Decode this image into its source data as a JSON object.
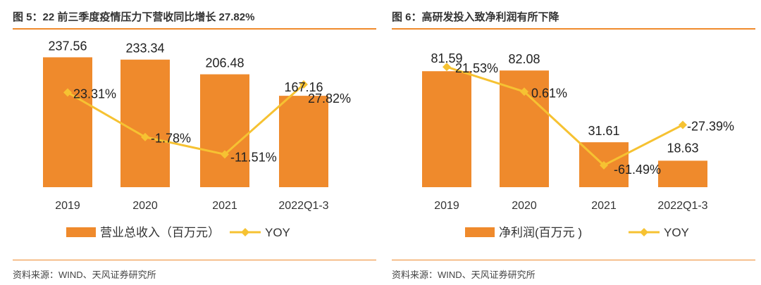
{
  "sources": {
    "left": "资料来源：WIND、天风证券研究所",
    "right": "资料来源：WIND、天风证券研究所"
  },
  "colors": {
    "bar": "#ef8a2c",
    "line": "#f6c232",
    "rule": "#ef8a2c"
  },
  "chart_data": [
    {
      "type": "bar",
      "title": "图 5：22 前三季度疫情压力下营收同比增长 27.82%",
      "categories": [
        "2019",
        "2020",
        "2021",
        "2022Q1-3"
      ],
      "series": [
        {
          "name": "营业总收入（百万元）",
          "type": "bar",
          "values": [
            237.56,
            233.34,
            206.48,
            167.16
          ],
          "labels": [
            "237.56",
            "233.34",
            "206.48",
            "167.16"
          ]
        },
        {
          "name": "YOY",
          "type": "line",
          "unit": "%",
          "values": [
            23.31,
            -1.78,
            -11.51,
            27.82
          ],
          "labels": [
            "23.31%",
            "-1.78%",
            "-11.51%",
            "27.82%"
          ]
        }
      ],
      "ylim_bar": [
        0,
        260
      ],
      "ylim_line": [
        -30,
        50
      ],
      "legend": "bottom"
    },
    {
      "type": "bar",
      "title": "图 6：高研发投入致净利润有所下降",
      "categories": [
        "2019",
        "2020",
        "2021",
        "2022Q1-3"
      ],
      "series": [
        {
          "name": "净利润(百万元 )",
          "type": "bar",
          "values": [
            81.59,
            82.08,
            31.61,
            18.63
          ],
          "labels": [
            "81.59",
            "82.08",
            "31.61",
            "18.63"
          ]
        },
        {
          "name": "YOY",
          "type": "line",
          "unit": "%",
          "values": [
            21.53,
            0.61,
            -61.49,
            -27.39
          ],
          "labels": [
            "21.53%",
            "0.61%",
            "-61.49%",
            "-27.39%"
          ]
        }
      ],
      "ylim_bar": [
        0,
        100
      ],
      "ylim_line": [
        -80,
        40
      ],
      "legend": "bottom"
    }
  ]
}
